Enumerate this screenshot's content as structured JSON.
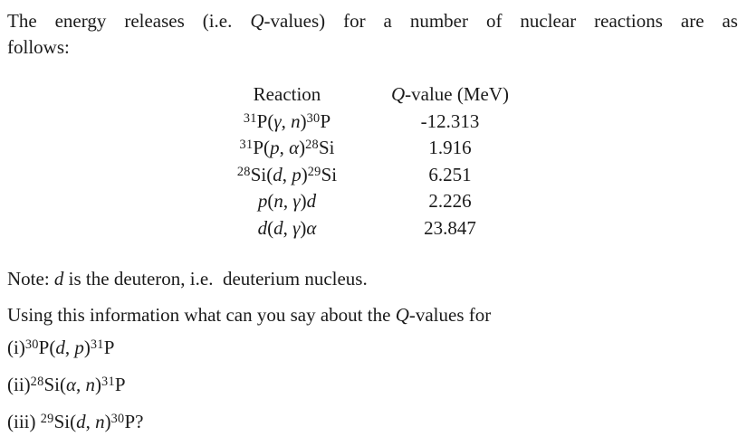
{
  "page": {
    "background": "#ffffff",
    "text_color": "#1b1b1b"
  },
  "intro": {
    "line1": [
      [
        "rm",
        "The energy releases (i.e. "
      ],
      [
        "it",
        "Q"
      ],
      [
        "rm",
        "-values) for a number of nuclear reactions are as"
      ]
    ],
    "line2": [
      [
        "rm",
        "follows:"
      ]
    ]
  },
  "table": {
    "header": {
      "reaction": [
        [
          "rm",
          "Reaction"
        ]
      ],
      "qvalue": [
        [
          "it",
          "Q"
        ],
        [
          "rm",
          "-value (MeV)"
        ]
      ]
    },
    "rows": [
      {
        "reaction": [
          [
            "sup",
            "31"
          ],
          [
            "rm",
            "P("
          ],
          [
            "it",
            "γ"
          ],
          [
            "rm",
            ", "
          ],
          [
            "it",
            "n"
          ],
          [
            "rm",
            ")"
          ],
          [
            "sup",
            "30"
          ],
          [
            "rm",
            "P"
          ]
        ],
        "qvalue": "-12.313"
      },
      {
        "reaction": [
          [
            "sup",
            "31"
          ],
          [
            "rm",
            "P("
          ],
          [
            "it",
            "p"
          ],
          [
            "rm",
            ", "
          ],
          [
            "it",
            "α"
          ],
          [
            "rm",
            ")"
          ],
          [
            "sup",
            "28"
          ],
          [
            "rm",
            "Si"
          ]
        ],
        "qvalue": "1.916"
      },
      {
        "reaction": [
          [
            "sup",
            "28"
          ],
          [
            "rm",
            "Si("
          ],
          [
            "it",
            "d"
          ],
          [
            "rm",
            ", "
          ],
          [
            "it",
            "p"
          ],
          [
            "rm",
            ")"
          ],
          [
            "sup",
            "29"
          ],
          [
            "rm",
            "Si"
          ]
        ],
        "qvalue": "6.251"
      },
      {
        "reaction": [
          [
            "it",
            "p"
          ],
          [
            "rm",
            "("
          ],
          [
            "it",
            "n"
          ],
          [
            "rm",
            ", "
          ],
          [
            "it",
            "γ"
          ],
          [
            "rm",
            ")"
          ],
          [
            "it",
            "d"
          ]
        ],
        "qvalue": "2.226"
      },
      {
        "reaction": [
          [
            "it",
            "d"
          ],
          [
            "rm",
            "("
          ],
          [
            "it",
            "d"
          ],
          [
            "rm",
            ", "
          ],
          [
            "it",
            "γ"
          ],
          [
            "rm",
            ")"
          ],
          [
            "it",
            "α"
          ]
        ],
        "qvalue": "23.847"
      }
    ]
  },
  "note": [
    [
      "rm",
      "Note: "
    ],
    [
      "it",
      "d"
    ],
    [
      "rm",
      " is the deuteron, i.e. deuterium nucleus."
    ]
  ],
  "question": [
    [
      "rm",
      "Using this information what can you say about the "
    ],
    [
      "it",
      "Q"
    ],
    [
      "rm",
      "-values for"
    ]
  ],
  "items": [
    [
      [
        "rm",
        "(i)"
      ],
      [
        "sup",
        "30"
      ],
      [
        "rm",
        "P("
      ],
      [
        "it",
        "d"
      ],
      [
        "rm",
        ", "
      ],
      [
        "it",
        "p"
      ],
      [
        "rm",
        ")"
      ],
      [
        "sup",
        "31"
      ],
      [
        "rm",
        "P"
      ]
    ],
    [
      [
        "rm",
        "(ii)"
      ],
      [
        "sup",
        "28"
      ],
      [
        "rm",
        "Si("
      ],
      [
        "it",
        "α"
      ],
      [
        "rm",
        ", "
      ],
      [
        "it",
        "n"
      ],
      [
        "rm",
        ")"
      ],
      [
        "sup",
        "31"
      ],
      [
        "rm",
        "P"
      ]
    ],
    [
      [
        "rm",
        "(iii) "
      ],
      [
        "sup",
        "29"
      ],
      [
        "rm",
        "Si("
      ],
      [
        "it",
        "d"
      ],
      [
        "rm",
        ", "
      ],
      [
        "it",
        "n"
      ],
      [
        "rm",
        ")"
      ],
      [
        "sup",
        "30"
      ],
      [
        "rm",
        "P?"
      ]
    ]
  ]
}
